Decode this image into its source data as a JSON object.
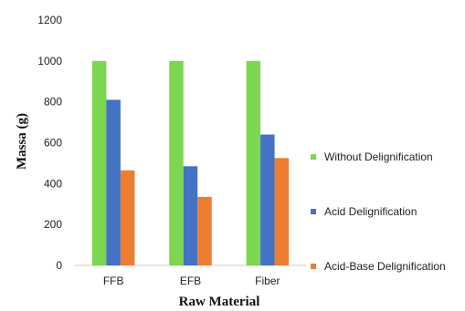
{
  "chart_data": {
    "type": "bar",
    "title": "",
    "xlabel": "Raw Material",
    "ylabel": "Massa (g)",
    "categories": [
      "FFB",
      "EFB",
      "Fiber"
    ],
    "ylim": [
      0,
      1200
    ],
    "yticks": [
      0,
      200,
      400,
      600,
      800,
      1000,
      1200
    ],
    "grid": false,
    "legend_position": "right",
    "series": [
      {
        "name": "Without Delignification",
        "color": "#7dd64f",
        "values": [
          1000,
          1000,
          1000
        ]
      },
      {
        "name": "Acid Delignification",
        "color": "#4472c4",
        "values": [
          810,
          485,
          640
        ]
      },
      {
        "name": "Acid-Base Delignification",
        "color": "#ed7d31",
        "values": [
          465,
          335,
          525
        ]
      }
    ]
  }
}
